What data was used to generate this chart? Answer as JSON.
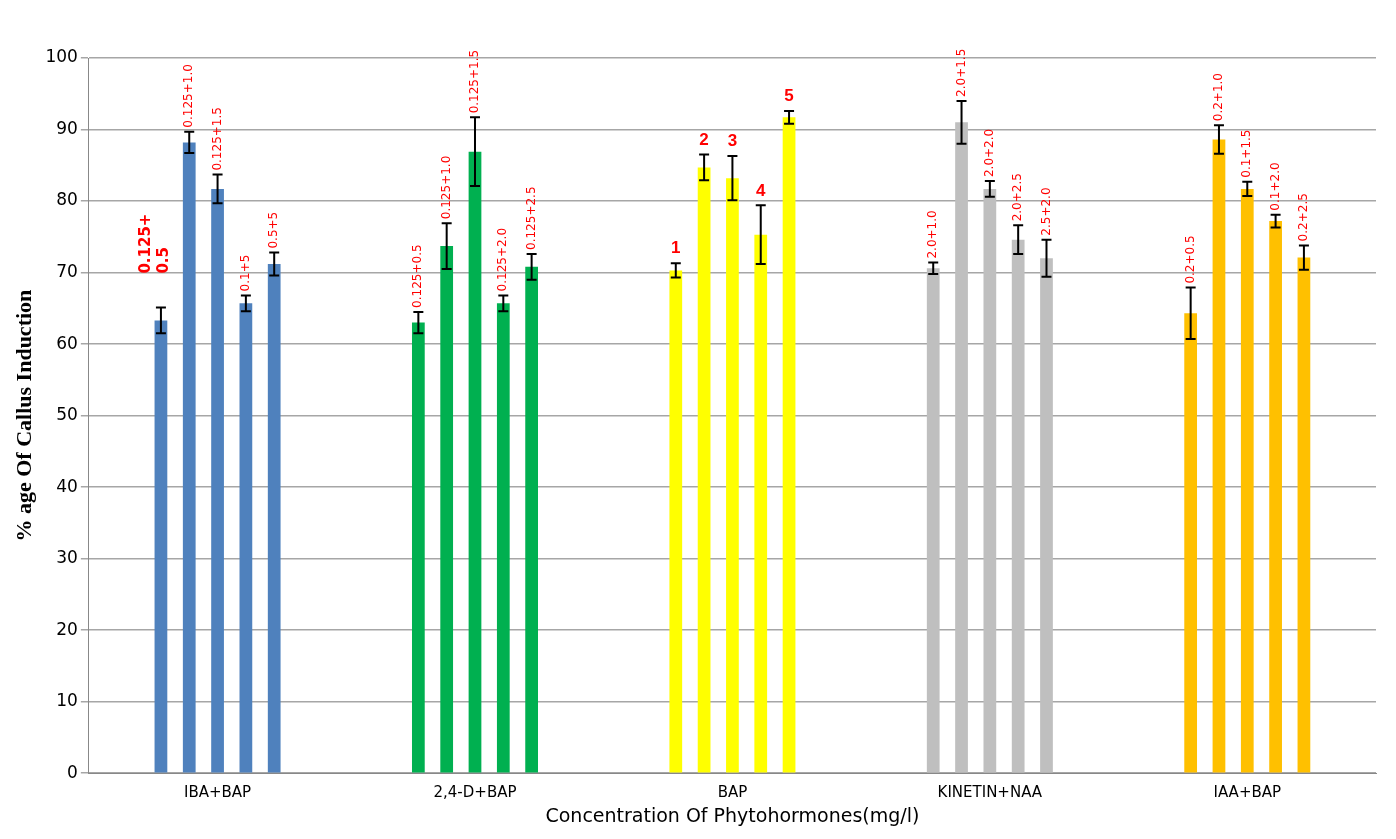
{
  "chart_data": {
    "type": "bar",
    "xlabel": "Concentration Of Phytohormones(mg/l)",
    "ylabel": "% age Of Callus Induction",
    "categories": [
      "IBA+BAP",
      "2,4-D+BAP",
      "BAP",
      "KINETIN+NAA",
      "IAA+BAP"
    ],
    "series": [
      {
        "colors": [
          "#4f81bd",
          "#00b050",
          "#ffff00",
          "#bfbfbf",
          "#ffc000"
        ],
        "values": [
          63.3,
          63.0,
          70.3,
          70.6,
          64.3
        ],
        "errors": [
          1.8,
          1.5,
          1.0,
          0.8,
          3.6
        ]
      },
      {
        "colors": [
          "#4f81bd",
          "#00b050",
          "#ffff00",
          "#bfbfbf",
          "#ffc000"
        ],
        "values": [
          88.2,
          73.7,
          84.7,
          91.0,
          88.6
        ],
        "errors": [
          1.5,
          3.2,
          1.8,
          3.0,
          2.0
        ]
      },
      {
        "colors": [
          "#4f81bd",
          "#00b050",
          "#ffff00",
          "#bfbfbf",
          "#ffc000"
        ],
        "values": [
          81.7,
          86.9,
          83.2,
          81.7,
          81.7
        ],
        "errors": [
          2.0,
          4.8,
          3.1,
          1.1,
          1.0
        ]
      },
      {
        "colors": [
          "#4f81bd",
          "#00b050",
          "#ffff00",
          "#bfbfbf",
          "#ffc000"
        ],
        "values": [
          65.7,
          65.7,
          75.3,
          74.6,
          77.2
        ],
        "errors": [
          1.1,
          1.1,
          4.1,
          2.0,
          0.9
        ]
      },
      {
        "colors": [
          "#4f81bd",
          "#00b050",
          "#ffff00",
          "#bfbfbf",
          "#ffc000"
        ],
        "values": [
          71.2,
          70.8,
          91.7,
          72.0,
          72.1
        ],
        "errors": [
          1.6,
          1.8,
          0.9,
          2.6,
          1.7
        ]
      }
    ],
    "annotations": [
      "0.125+ 0.5",
      "0.125+1.0",
      "0.125+1.5",
      "0.1+5",
      "0.5+5",
      "0.125+0.5",
      "0.125+1.0",
      "0.125+1.5",
      "0.125+2.0",
      "0.125+2.5",
      "1",
      "2",
      "3",
      "4",
      "5",
      "2.0+1.0",
      "2.0+1.5",
      "2.0+2.0",
      "2.0+2.5",
      "2.5+2.0",
      "0.2+0.5",
      "0.2+1.0",
      "0.1+1.5",
      "0.1+2.0",
      "0.2+2.5"
    ],
    "ylim": [
      0,
      100
    ],
    "yticks": [
      0,
      10,
      20,
      30,
      40,
      50,
      60,
      70,
      80,
      90,
      100
    ],
    "grid": "y",
    "legend": false
  }
}
